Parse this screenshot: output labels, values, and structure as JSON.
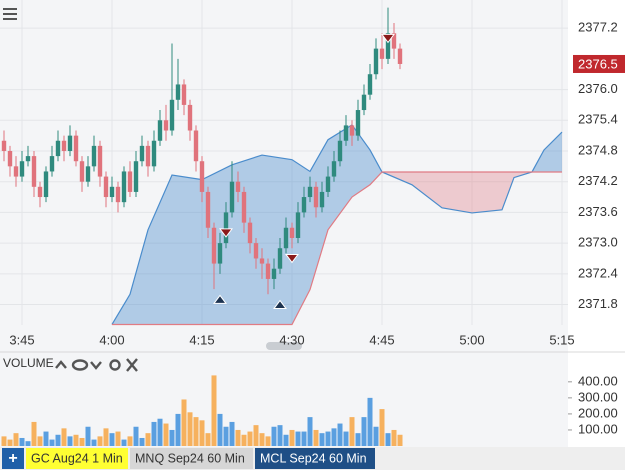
{
  "chart_data": {
    "type": "candlestick",
    "x": [
      "3:42",
      "3:43",
      "3:44",
      "3:45",
      "3:46",
      "3:47",
      "3:48",
      "3:49",
      "3:50",
      "3:51",
      "3:52",
      "3:53",
      "3:54",
      "3:55",
      "3:56",
      "3:57",
      "3:58",
      "3:59",
      "4:00",
      "4:01",
      "4:02",
      "4:03",
      "4:04",
      "4:05",
      "4:06",
      "4:07",
      "4:08",
      "4:09",
      "4:10",
      "4:11",
      "4:12",
      "4:13",
      "4:14",
      "4:15",
      "4:16",
      "4:17",
      "4:18",
      "4:19",
      "4:20",
      "4:21",
      "4:22",
      "4:23",
      "4:24",
      "4:25",
      "4:26",
      "4:27",
      "4:28",
      "4:29",
      "4:30",
      "4:31",
      "4:32",
      "4:33",
      "4:34",
      "4:35",
      "4:36",
      "4:37",
      "4:38",
      "4:39",
      "4:40",
      "4:41",
      "4:42",
      "4:43",
      "4:44",
      "4:45",
      "4:46",
      "4:47",
      "4:48"
    ],
    "open": [
      2375.0,
      2374.8,
      2374.5,
      2374.3,
      2374.6,
      2374.7,
      2374.1,
      2373.9,
      2374.4,
      2374.7,
      2375.0,
      2374.8,
      2375.1,
      2374.6,
      2374.2,
      2374.5,
      2374.9,
      2374.3,
      2373.9,
      2374.1,
      2373.8,
      2374.4,
      2374.0,
      2374.6,
      2374.9,
      2374.5,
      2375.0,
      2375.4,
      2375.2,
      2375.8,
      2376.1,
      2375.7,
      2375.2,
      2374.6,
      2374.0,
      2373.3,
      2372.6,
      2373.0,
      2373.6,
      2374.2,
      2374.0,
      2373.4,
      2373.0,
      2372.7,
      2372.6,
      2372.3,
      2372.5,
      2372.9,
      2373.3,
      2373.1,
      2373.6,
      2373.9,
      2374.1,
      2373.7,
      2374.0,
      2374.3,
      2374.6,
      2375.0,
      2375.3,
      2375.1,
      2375.6,
      2375.9,
      2376.3,
      2376.8,
      2376.6,
      2377.1,
      2376.8
    ],
    "high": [
      2375.2,
      2374.9,
      2374.7,
      2374.8,
      2374.9,
      2374.8,
      2374.2,
      2374.5,
      2374.9,
      2375.2,
      2375.1,
      2375.3,
      2375.2,
      2374.7,
      2374.7,
      2375.1,
      2375.0,
      2374.4,
      2374.3,
      2374.2,
      2374.5,
      2374.6,
      2374.8,
      2375.1,
      2375.0,
      2375.2,
      2375.6,
      2375.7,
      2376.9,
      2376.6,
      2376.2,
      2375.8,
      2375.3,
      2374.7,
      2374.1,
      2373.4,
      2373.2,
      2373.8,
      2374.6,
      2374.4,
      2374.1,
      2373.5,
      2373.1,
      2372.9,
      2372.7,
      2372.7,
      2373.1,
      2373.5,
      2373.4,
      2373.8,
      2374.1,
      2374.3,
      2374.2,
      2374.2,
      2374.5,
      2374.8,
      2375.2,
      2375.5,
      2375.4,
      2375.8,
      2376.1,
      2376.5,
      2377.0,
      2377.1,
      2377.6,
      2377.3,
      2376.9
    ],
    "low": [
      2374.6,
      2374.3,
      2374.1,
      2374.2,
      2374.5,
      2373.9,
      2373.7,
      2373.8,
      2374.3,
      2374.6,
      2374.6,
      2374.7,
      2374.5,
      2374.0,
      2374.1,
      2374.4,
      2374.1,
      2373.7,
      2373.8,
      2373.6,
      2373.7,
      2373.9,
      2373.9,
      2374.5,
      2374.3,
      2374.4,
      2374.9,
      2375.0,
      2375.1,
      2375.6,
      2375.5,
      2375.0,
      2374.4,
      2373.8,
      2373.1,
      2372.1,
      2372.4,
      2372.9,
      2373.5,
      2373.8,
      2373.2,
      2372.8,
      2372.5,
      2372.3,
      2372.0,
      2372.1,
      2372.4,
      2372.8,
      2372.9,
      2373.0,
      2373.5,
      2373.8,
      2373.5,
      2373.6,
      2373.9,
      2374.2,
      2374.5,
      2374.9,
      2374.9,
      2375.0,
      2375.5,
      2375.8,
      2376.2,
      2376.4,
      2376.5,
      2376.6,
      2376.4
    ],
    "close": [
      2374.8,
      2374.5,
      2374.3,
      2374.6,
      2374.7,
      2374.1,
      2373.9,
      2374.4,
      2374.7,
      2375.0,
      2374.8,
      2375.1,
      2374.6,
      2374.2,
      2374.5,
      2374.9,
      2374.3,
      2373.9,
      2374.1,
      2373.8,
      2374.4,
      2374.0,
      2374.6,
      2374.9,
      2374.5,
      2375.0,
      2375.4,
      2375.2,
      2375.8,
      2376.1,
      2375.7,
      2375.2,
      2374.6,
      2374.0,
      2373.3,
      2372.6,
      2373.0,
      2373.6,
      2374.2,
      2374.0,
      2373.4,
      2373.0,
      2372.7,
      2372.6,
      2372.3,
      2372.5,
      2372.9,
      2373.3,
      2373.1,
      2373.6,
      2373.9,
      2374.1,
      2373.7,
      2374.0,
      2374.3,
      2374.6,
      2375.0,
      2375.3,
      2375.1,
      2375.6,
      2375.9,
      2376.3,
      2376.8,
      2376.6,
      2377.1,
      2376.8,
      2376.5
    ],
    "up_color": "#2f8a7e",
    "down_color": "#e0737c",
    "ylim": [
      2371.4,
      2377.75
    ],
    "yticks": [
      2371.8,
      2372.4,
      {
        "value": 2373,
        "label": "2373.0"
      },
      2373.6,
      2374.2,
      2374.8,
      2375.4,
      {
        "value": 2376,
        "label": "2376.0"
      },
      2377.2
    ],
    "xticks": [
      "3:45",
      "4:00",
      "4:15",
      "4:30",
      "4:45",
      "5:00",
      "5:15"
    ],
    "grid": true,
    "cloud": {
      "x": [
        "4:00",
        "4:03",
        "4:06",
        "4:10",
        "4:15",
        "4:20",
        "4:25",
        "4:30",
        "4:33",
        "4:36",
        "4:40",
        "4:43",
        "4:45",
        "4:50",
        "4:55",
        "5:00",
        "5:05",
        "5:07",
        "5:10",
        "5:12",
        "5:15"
      ],
      "span_a": [
        2371.41,
        2372.0,
        2373.26,
        2374.33,
        2374.24,
        2374.53,
        2374.72,
        2374.63,
        2374.4,
        2375.02,
        2375.31,
        2374.82,
        2374.39,
        2374.14,
        2373.69,
        2373.59,
        2373.65,
        2374.28,
        2374.39,
        2374.82,
        2375.17
      ],
      "span_b": [
        2371.41,
        2371.41,
        2371.41,
        2371.41,
        2371.41,
        2371.41,
        2371.41,
        2371.41,
        2372.09,
        2373.26,
        2373.9,
        2374.14,
        2374.39,
        2374.39,
        2374.39,
        2374.39,
        2374.39,
        2374.39,
        2374.39,
        2374.39,
        2374.39
      ],
      "up_color": "#4a8ccc",
      "down_color": "#e07b84"
    },
    "markers": {
      "x": [
        "4:19",
        "4:18",
        "4:30",
        "4:28",
        "4:46"
      ],
      "values": [
        2373.2,
        2371.9,
        2372.7,
        2371.8,
        2377.0
      ],
      "direction": [
        "down",
        "up",
        "down",
        "up",
        "down"
      ]
    },
    "volume": {
      "label": "VOLUME",
      "values": [
        60,
        40,
        80,
        50,
        30,
        150,
        60,
        90,
        40,
        70,
        110,
        60,
        70,
        50,
        120,
        40,
        60,
        110,
        80,
        90,
        40,
        60,
        120,
        50,
        80,
        150,
        170,
        140,
        100,
        200,
        290,
        210,
        180,
        160,
        80,
        440,
        200,
        120,
        150,
        100,
        70,
        90,
        130,
        80,
        60,
        120,
        130,
        70,
        100,
        90,
        90,
        180,
        100,
        80,
        90,
        110,
        140,
        90,
        180,
        80,
        180,
        300,
        120,
        230,
        80,
        100,
        70
      ],
      "ylim": [
        0,
        455
      ],
      "yticks": [
        {
          "value": 100,
          "label": "100.00"
        },
        {
          "value": 200,
          "label": "200.00"
        },
        {
          "value": 300,
          "label": "300.00"
        },
        {
          "value": 400,
          "label": "400.00"
        }
      ],
      "up_color": "#5a9fe0",
      "down_color": "#f6b15e"
    }
  },
  "ui": {
    "add_button": "+",
    "tabs": [
      "GC Aug24 1 Min",
      "MNQ Sep24 60 Min",
      "MCL Sep24 60 Min"
    ]
  }
}
